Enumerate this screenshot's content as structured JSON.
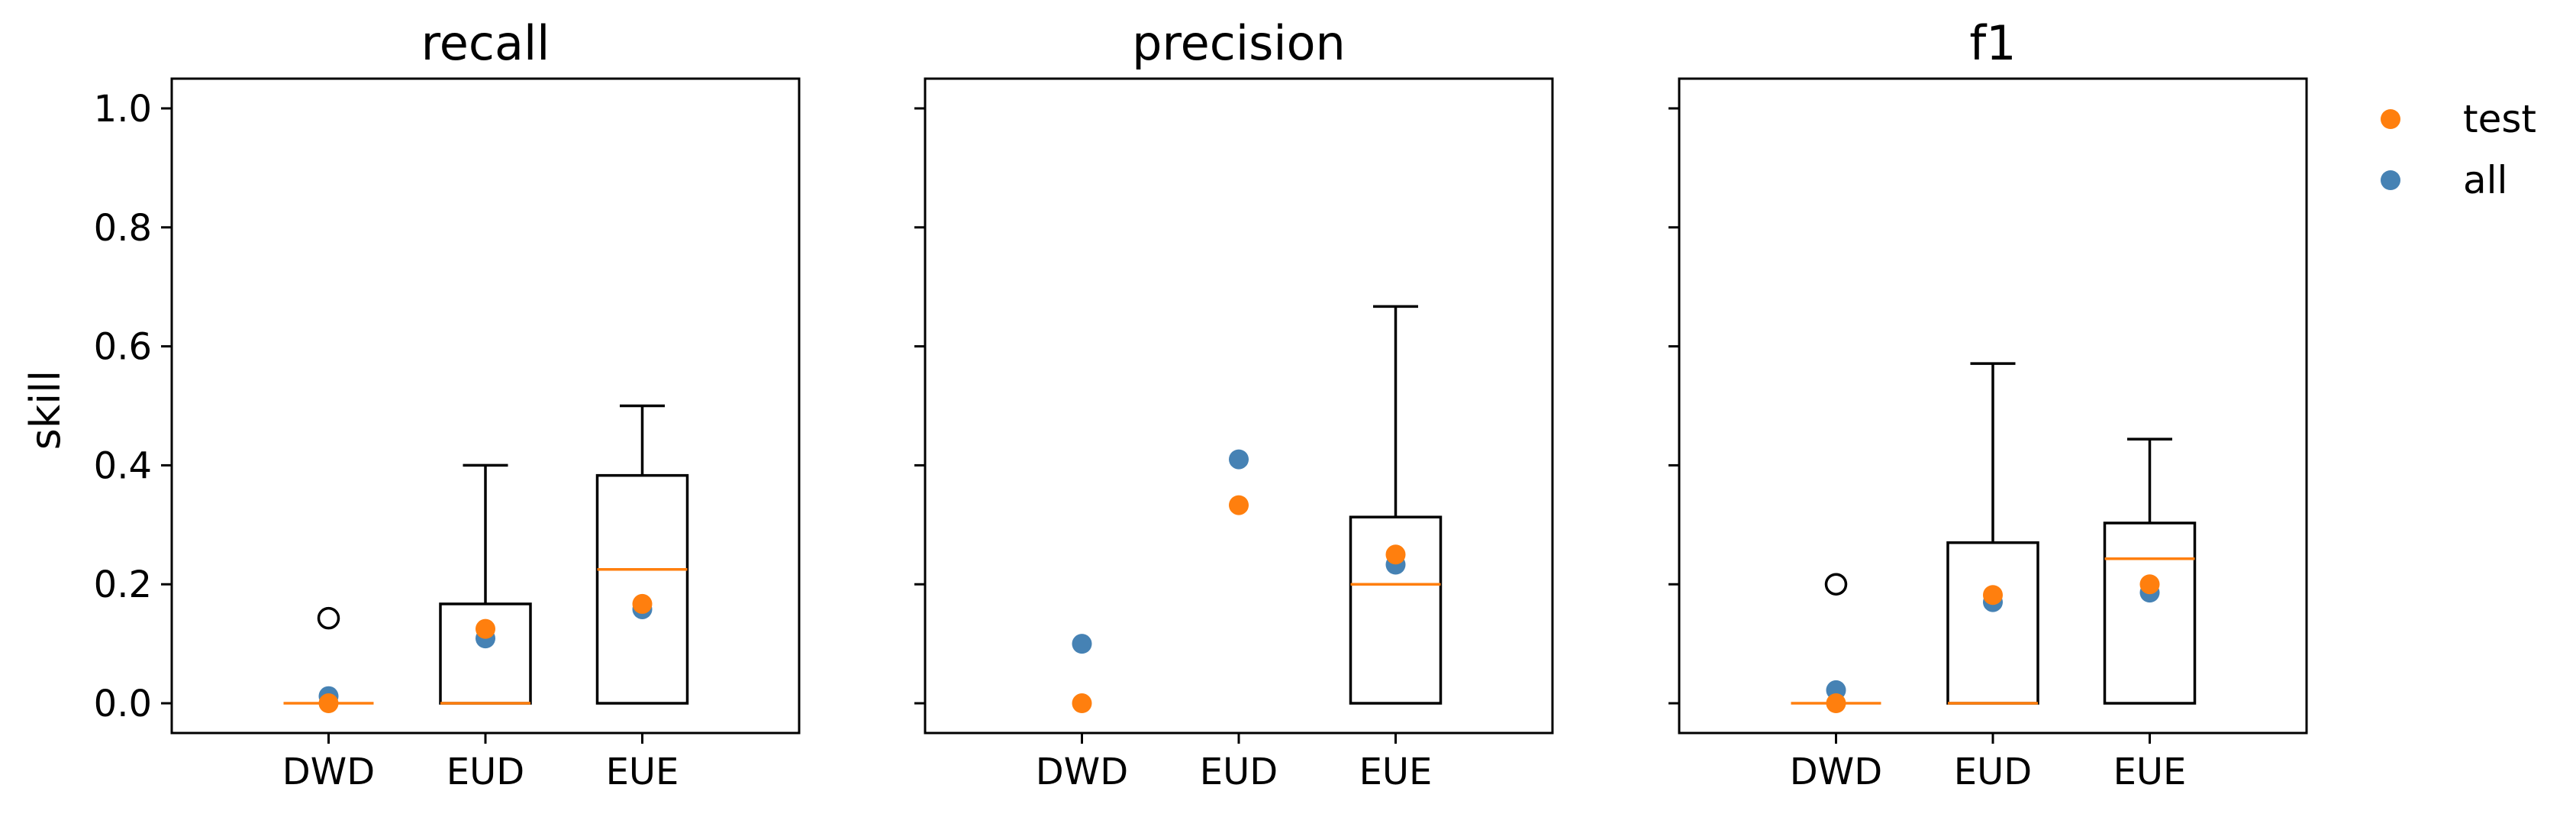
{
  "chart_data": {
    "type": "box+scatter",
    "ylabel": "skill",
    "ylim": [
      -0.05,
      1.05
    ],
    "yticks": [
      "0.0",
      "0.2",
      "0.4",
      "0.6",
      "0.8",
      "1.0"
    ],
    "ytick_values": [
      0.0,
      0.2,
      0.4,
      0.6,
      0.8,
      1.0
    ],
    "categories": [
      "DWD",
      "EUD",
      "EUE"
    ],
    "legend": {
      "placement": "upper-right-outside",
      "entries": [
        {
          "name": "test",
          "color": "#ff7f0e"
        },
        {
          "name": "all",
          "color": "#4682b4"
        }
      ]
    },
    "colors": {
      "test": "#ff7f0e",
      "all": "#4682b4",
      "median": "#ff7f0e",
      "box": "#000000"
    },
    "panels": [
      {
        "title": "recall",
        "boxes": [
          {
            "category": "DWD",
            "whislo": 0.0,
            "q1": 0.0,
            "med": 0.0,
            "q3": 0.0,
            "whishi": 0.0,
            "fliers": [
              0.143
            ]
          },
          {
            "category": "EUD",
            "whislo": 0.0,
            "q1": 0.0,
            "med": 0.0,
            "q3": 0.167,
            "whishi": 0.4,
            "fliers": []
          },
          {
            "category": "EUE",
            "whislo": 0.0,
            "q1": 0.0,
            "med": 0.225,
            "q3": 0.383,
            "whishi": 0.5,
            "fliers": []
          }
        ],
        "all": [
          0.012,
          0.109,
          0.158
        ],
        "test": [
          0.0,
          0.125,
          0.167
        ]
      },
      {
        "title": "precision",
        "boxes": [
          null,
          null,
          {
            "category": "EUE",
            "whislo": 0.0,
            "q1": 0.0,
            "med": 0.2,
            "q3": 0.313,
            "whishi": 0.667,
            "fliers": []
          }
        ],
        "all": [
          0.1,
          0.41,
          0.233
        ],
        "test": [
          0.0,
          0.333,
          0.25
        ]
      },
      {
        "title": "f1",
        "boxes": [
          {
            "category": "DWD",
            "whislo": 0.0,
            "q1": 0.0,
            "med": 0.0,
            "q3": 0.0,
            "whishi": 0.0,
            "fliers": [
              0.2
            ]
          },
          {
            "category": "EUD",
            "whislo": 0.0,
            "q1": 0.0,
            "med": 0.0,
            "q3": 0.27,
            "whishi": 0.571,
            "fliers": []
          },
          {
            "category": "EUE",
            "whislo": 0.0,
            "q1": 0.0,
            "med": 0.243,
            "q3": 0.303,
            "whishi": 0.444,
            "fliers": []
          }
        ],
        "all": [
          0.022,
          0.17,
          0.186
        ],
        "test": [
          0.0,
          0.182,
          0.2
        ]
      }
    ]
  }
}
